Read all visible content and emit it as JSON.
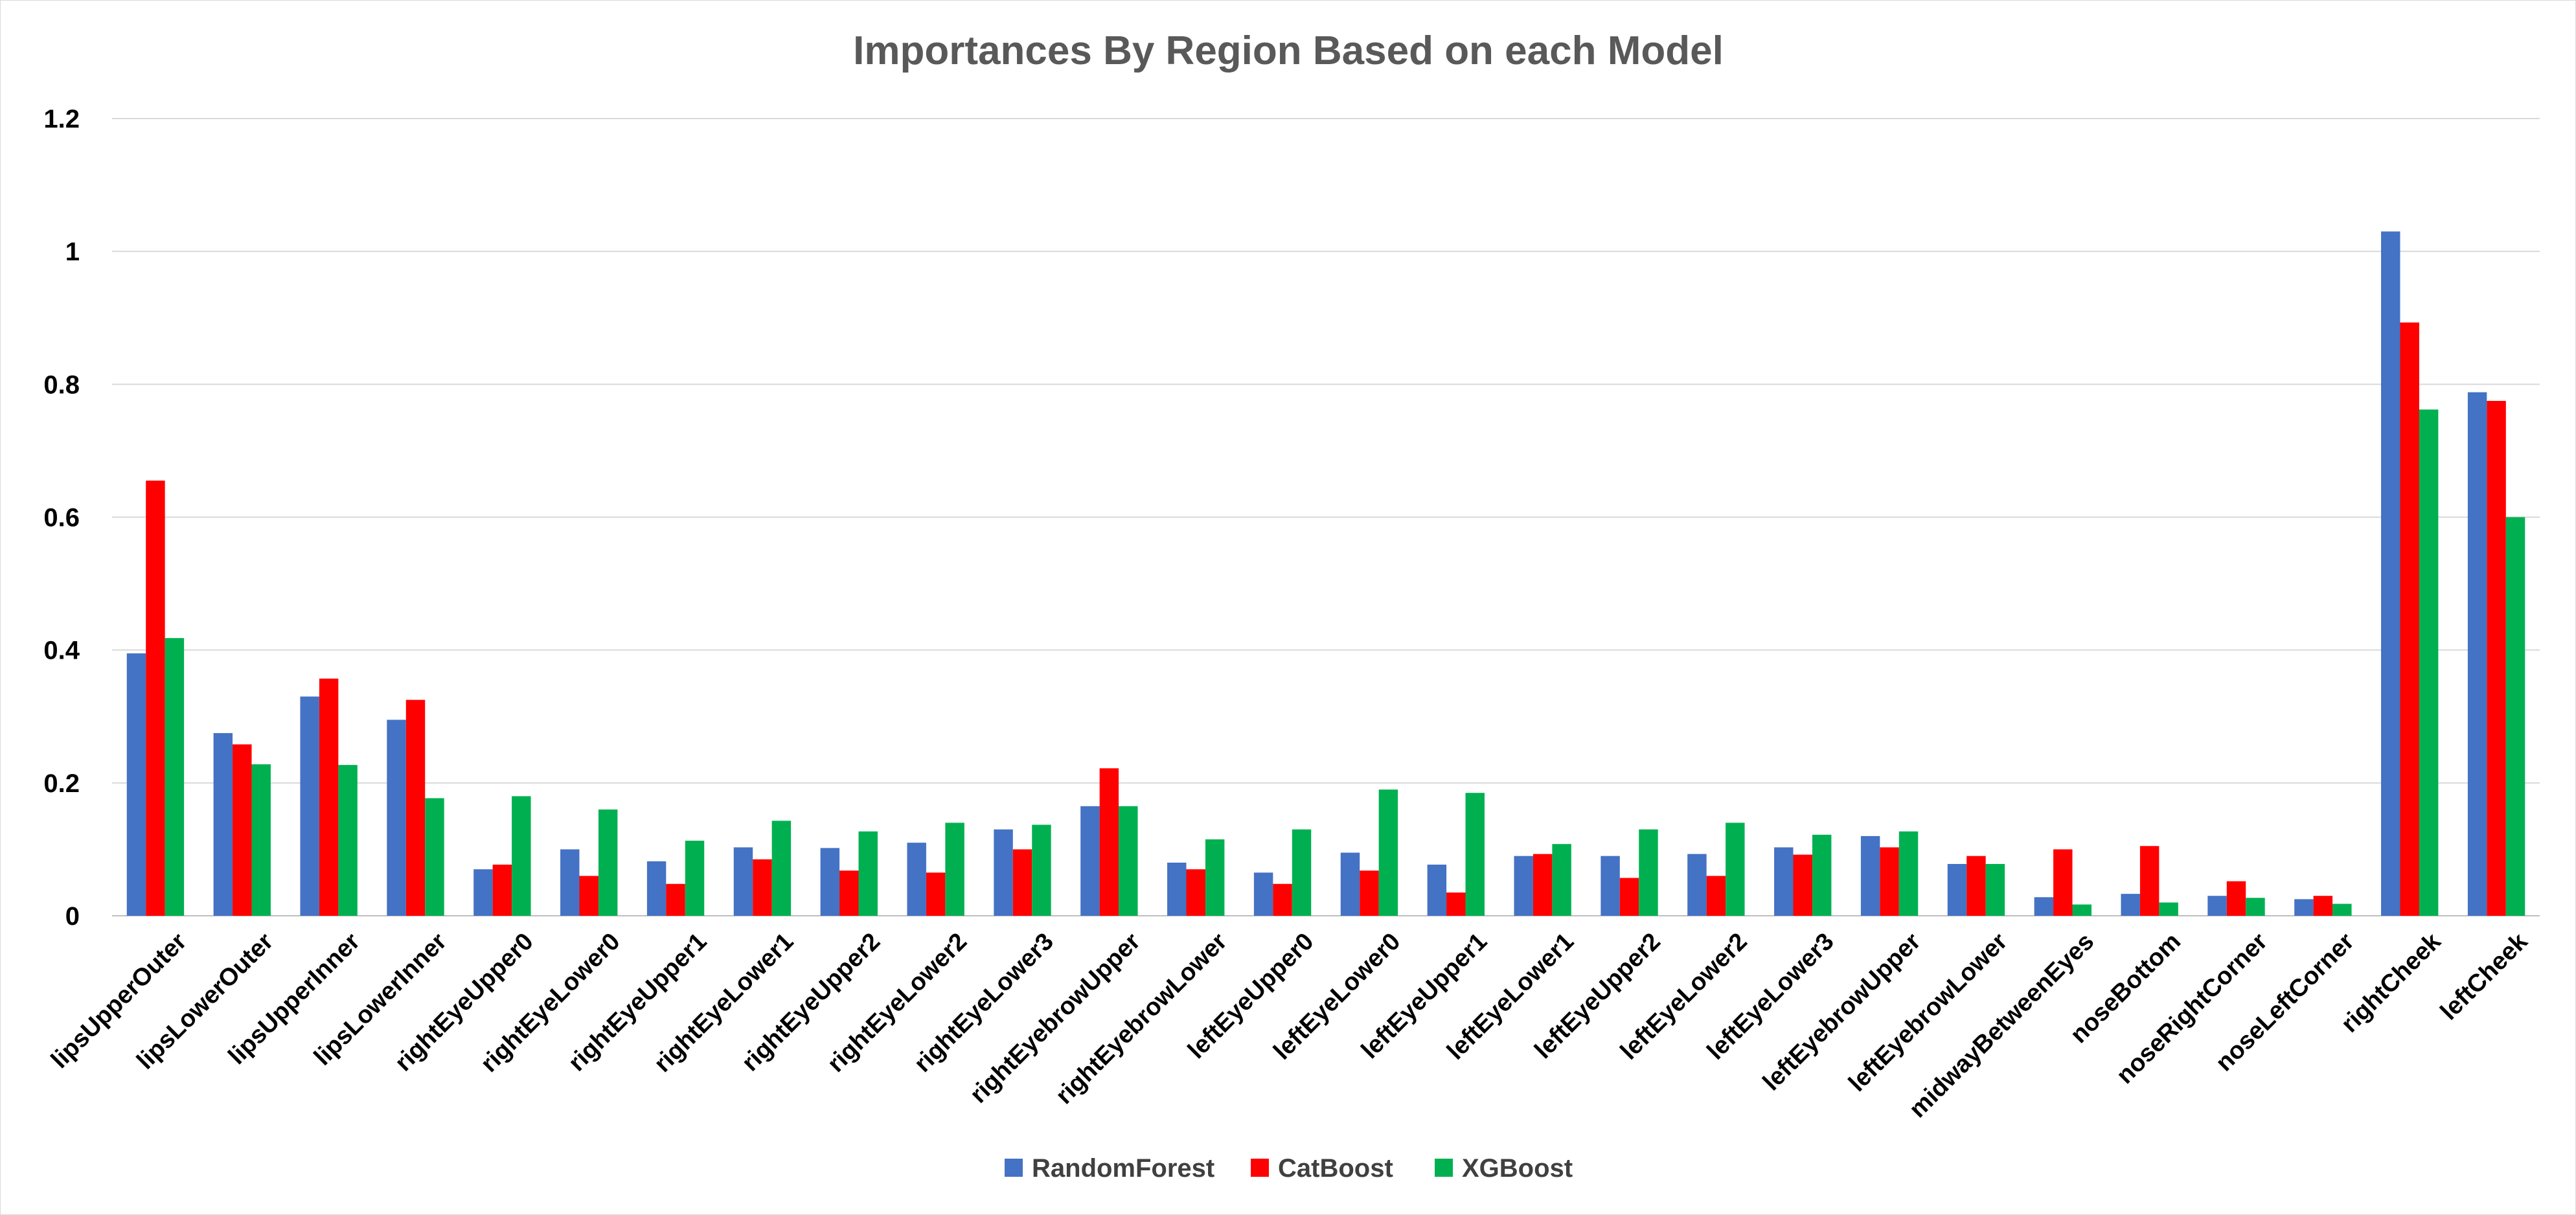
{
  "chart_data": {
    "type": "bar",
    "title": "Importances By Region Based on each Model",
    "xlabel": "",
    "ylabel": "",
    "ylim": [
      0,
      1.2
    ],
    "yticks": [
      "0",
      "0.2",
      "0.4",
      "0.6",
      "0.8",
      "1",
      "1.2"
    ],
    "grid": true,
    "legend_position": "bottom",
    "categories": [
      "lipsUpperOuter",
      "lipsLowerOuter",
      "lipsUpperInner",
      "lipsLowerInner",
      "rightEyeUpper0",
      "rightEyeLower0",
      "rightEyeUpper1",
      "rightEyeLower1",
      "rightEyeUpper2",
      "rightEyeLower2",
      "rightEyeLower3",
      "rightEyebrowUpper",
      "rightEyebrowLower",
      "leftEyeUpper0",
      "leftEyeLower0",
      "leftEyeUpper1",
      "leftEyeLower1",
      "leftEyeUpper2",
      "leftEyeLower2",
      "leftEyeLower3",
      "leftEyebrowUpper",
      "leftEyebrowLower",
      "midwayBetweenEyes",
      "noseBottom",
      "noseRightCorner",
      "noseLeftCorner",
      "rightCheek",
      "leftCheek"
    ],
    "series": [
      {
        "name": "RandomForest",
        "color": "#4472C4",
        "values": [
          0.395,
          0.275,
          0.33,
          0.295,
          0.07,
          0.1,
          0.082,
          0.103,
          0.102,
          0.11,
          0.13,
          0.165,
          0.08,
          0.065,
          0.095,
          0.077,
          0.09,
          0.09,
          0.093,
          0.103,
          0.12,
          0.078,
          0.028,
          0.033,
          0.03,
          0.025,
          1.03,
          0.788
        ]
      },
      {
        "name": "CatBoost",
        "color": "#FF0000",
        "values": [
          0.655,
          0.258,
          0.357,
          0.325,
          0.077,
          0.06,
          0.048,
          0.085,
          0.068,
          0.065,
          0.1,
          0.222,
          0.07,
          0.048,
          0.068,
          0.035,
          0.093,
          0.057,
          0.06,
          0.092,
          0.103,
          0.09,
          0.1,
          0.105,
          0.052,
          0.03,
          0.893,
          0.775
        ]
      },
      {
        "name": "XGBoost",
        "color": "#00B050",
        "values": [
          0.418,
          0.228,
          0.227,
          0.177,
          0.18,
          0.16,
          0.113,
          0.143,
          0.127,
          0.14,
          0.137,
          0.165,
          0.115,
          0.13,
          0.19,
          0.185,
          0.108,
          0.13,
          0.14,
          0.122,
          0.127,
          0.078,
          0.017,
          0.02,
          0.027,
          0.018,
          0.762,
          0.6
        ]
      }
    ]
  }
}
